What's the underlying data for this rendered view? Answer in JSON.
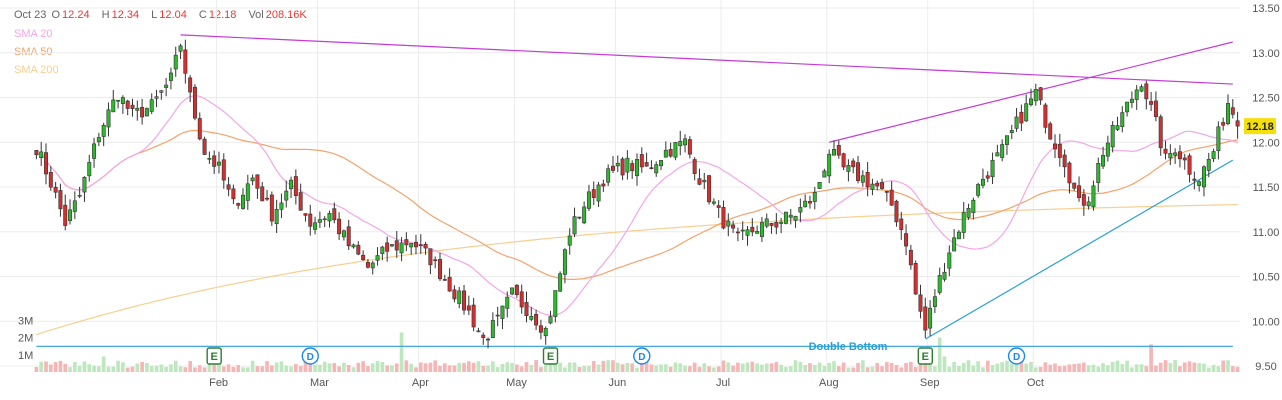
{
  "header": {
    "date": "Oct 23",
    "open_label": "O",
    "open": "12.24",
    "high_label": "H",
    "high": "12.34",
    "low_label": "L",
    "low": "12.04",
    "close_label": "C",
    "close": "12.18",
    "vol_label": "Vol",
    "vol": "208.16K"
  },
  "legend": [
    {
      "label": "SMA 20",
      "color": "#f4a6e6"
    },
    {
      "label": "SMA 50",
      "color": "#f5a36b"
    },
    {
      "label": "SMA 200",
      "color": "#f7cf8f"
    }
  ],
  "colors": {
    "up": "#2eb82e",
    "down": "#d32f2f",
    "trendline": "#c43bd6",
    "support": "#2a9fd6",
    "last_price_bg": "#f5e10a"
  },
  "chart_data": {
    "type": "candlestick",
    "x_months": [
      "Feb",
      "Mar",
      "Apr",
      "May",
      "Jun",
      "Jul",
      "Aug",
      "Sep",
      "Oct"
    ],
    "y_ticks": [
      "13.50",
      "13.00",
      "12.50",
      "12.00",
      "11.50",
      "11.00",
      "10.50",
      "10.00",
      "9.50"
    ],
    "ylim": [
      9.5,
      13.5
    ],
    "volume_ticks": [
      "3M",
      "2M",
      "1M"
    ],
    "volume_max_m": 3.6,
    "last_price": "12.18",
    "pattern_label": "Double Bottom",
    "event_markers": [
      {
        "type": "E",
        "day": 37
      },
      {
        "type": "D",
        "day": 57
      },
      {
        "type": "E",
        "day": 107
      },
      {
        "type": "D",
        "day": 126
      },
      {
        "type": "E",
        "day": 185
      },
      {
        "type": "D",
        "day": 204
      }
    ],
    "trendlines": [
      {
        "name": "resistance",
        "from": [
          30,
          13.2
        ],
        "to": [
          249,
          12.65
        ]
      },
      {
        "name": "rising",
        "from": [
          165,
          12.0
        ],
        "to": [
          249,
          13.12
        ]
      },
      {
        "name": "support",
        "from": [
          185,
          9.8
        ],
        "to": [
          249,
          11.8
        ]
      },
      {
        "name": "double-bottom-level",
        "from": [
          0,
          9.72
        ],
        "to": [
          249,
          9.72
        ]
      }
    ],
    "anchors": [
      [
        0,
        11.95
      ],
      [
        3,
        11.55
      ],
      [
        6,
        11.1
      ],
      [
        9,
        11.4
      ],
      [
        13,
        12.1
      ],
      [
        17,
        12.55
      ],
      [
        20,
        12.3
      ],
      [
        24,
        12.4
      ],
      [
        28,
        12.7
      ],
      [
        30,
        13.1
      ],
      [
        32,
        12.5
      ],
      [
        35,
        11.9
      ],
      [
        38,
        11.7
      ],
      [
        41,
        11.3
      ],
      [
        45,
        11.6
      ],
      [
        49,
        11.2
      ],
      [
        53,
        11.5
      ],
      [
        57,
        11.1
      ],
      [
        61,
        11.2
      ],
      [
        65,
        10.85
      ],
      [
        69,
        10.6
      ],
      [
        73,
        10.8
      ],
      [
        78,
        10.9
      ],
      [
        82,
        10.7
      ],
      [
        86,
        10.4
      ],
      [
        90,
        10.1
      ],
      [
        93,
        9.8
      ],
      [
        96,
        10.0
      ],
      [
        99,
        10.3
      ],
      [
        103,
        10.1
      ],
      [
        106,
        9.9
      ],
      [
        108,
        10.3
      ],
      [
        111,
        11.0
      ],
      [
        114,
        11.3
      ],
      [
        118,
        11.6
      ],
      [
        123,
        11.75
      ],
      [
        127,
        11.7
      ],
      [
        131,
        11.9
      ],
      [
        135,
        12.0
      ],
      [
        138,
        11.6
      ],
      [
        142,
        11.2
      ],
      [
        146,
        10.9
      ],
      [
        150,
        11.05
      ],
      [
        154,
        11.1
      ],
      [
        158,
        11.2
      ],
      [
        162,
        11.4
      ],
      [
        165,
        11.9
      ],
      [
        168,
        11.7
      ],
      [
        172,
        11.6
      ],
      [
        175,
        11.5
      ],
      [
        178,
        11.3
      ],
      [
        181,
        10.9
      ],
      [
        183,
        10.3
      ],
      [
        185,
        9.9
      ],
      [
        187,
        10.3
      ],
      [
        190,
        10.8
      ],
      [
        194,
        11.3
      ],
      [
        197,
        11.6
      ],
      [
        201,
        11.9
      ],
      [
        205,
        12.3
      ],
      [
        208,
        12.55
      ],
      [
        211,
        12.1
      ],
      [
        214,
        11.8
      ],
      [
        217,
        11.3
      ],
      [
        219,
        11.4
      ],
      [
        222,
        11.9
      ],
      [
        225,
        12.2
      ],
      [
        228,
        12.5
      ],
      [
        230,
        12.7
      ],
      [
        233,
        12.2
      ],
      [
        235,
        11.8
      ],
      [
        237,
        11.95
      ],
      [
        240,
        11.7
      ],
      [
        242,
        11.6
      ],
      [
        245,
        11.9
      ],
      [
        248,
        12.45
      ],
      [
        250,
        12.24
      ]
    ],
    "last_candle": {
      "open": 12.24,
      "high": 12.34,
      "low": 12.04,
      "close": 12.18
    }
  }
}
